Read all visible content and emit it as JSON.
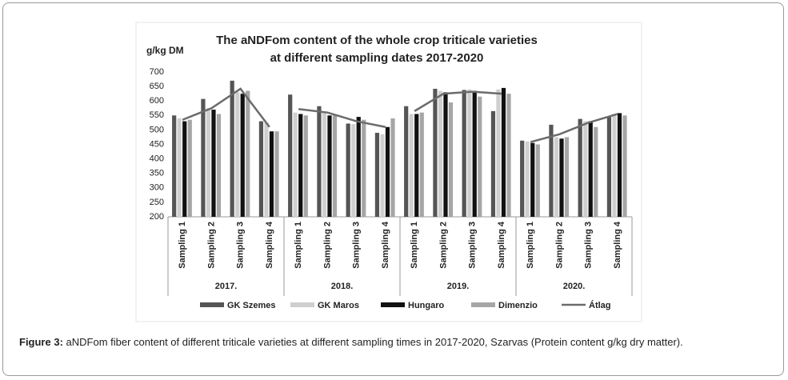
{
  "chart_data": {
    "type": "bar",
    "title": [
      "The aNDFom content of the  whole crop triticale varieties",
      "at different sampling dates 2017-2020"
    ],
    "y_label": "g/kg DM",
    "groups": [
      {
        "label": "2017.",
        "categories": [
          "Sampling 1",
          "Sampling 2",
          "Sampling 3",
          "Sampling 4"
        ]
      },
      {
        "label": "2018.",
        "categories": [
          "Sampling 1",
          "Sampling 2",
          "Sampling 3",
          "Sampling 4"
        ]
      },
      {
        "label": "2019.",
        "categories": [
          "Sampling 1",
          "Sampling 2",
          "Sampling 3",
          "Sampling 4"
        ]
      },
      {
        "label": "2020.",
        "categories": [
          "Sampling 1",
          "Sampling 2",
          "Sampling 3",
          "Sampling 4"
        ]
      }
    ],
    "series": [
      {
        "name": "GK Szemes",
        "color": "#555555",
        "values": [
          550,
          607,
          670,
          530,
          622,
          582,
          522,
          490,
          582,
          642,
          638,
          565,
          463,
          518,
          538,
          545
        ]
      },
      {
        "name": "GK Maros",
        "color": "#cfcfcf",
        "values": [
          540,
          575,
          630,
          525,
          560,
          560,
          520,
          485,
          555,
          635,
          640,
          640,
          460,
          475,
          530,
          555
        ]
      },
      {
        "name": "Hungaro",
        "color": "#111111",
        "values": [
          530,
          570,
          625,
          495,
          555,
          550,
          545,
          510,
          555,
          630,
          635,
          645,
          455,
          470,
          530,
          558
        ]
      },
      {
        "name": "Dimenzio",
        "color": "#a6a6a6",
        "values": [
          535,
          555,
          635,
          495,
          550,
          550,
          535,
          540,
          560,
          595,
          615,
          625,
          450,
          475,
          510,
          550
        ]
      },
      {
        "name": "Átlag",
        "color": "#6b6b6b",
        "type": "line",
        "values": [
          535,
          575,
          642,
          510,
          572,
          560,
          530,
          510,
          565,
          625,
          632,
          625,
          458,
          485,
          525,
          555
        ]
      }
    ],
    "ylim": [
      200,
      700
    ],
    "yticks": [
      200,
      250,
      300,
      350,
      400,
      450,
      500,
      550,
      600,
      650,
      700
    ],
    "grid": false
  },
  "caption": {
    "label": "Figure 3:",
    "text": " aNDFom fiber content of different triticale varieties at different sampling times in 2017-2020, Szarvas (Protein content g/kg dry matter)."
  }
}
